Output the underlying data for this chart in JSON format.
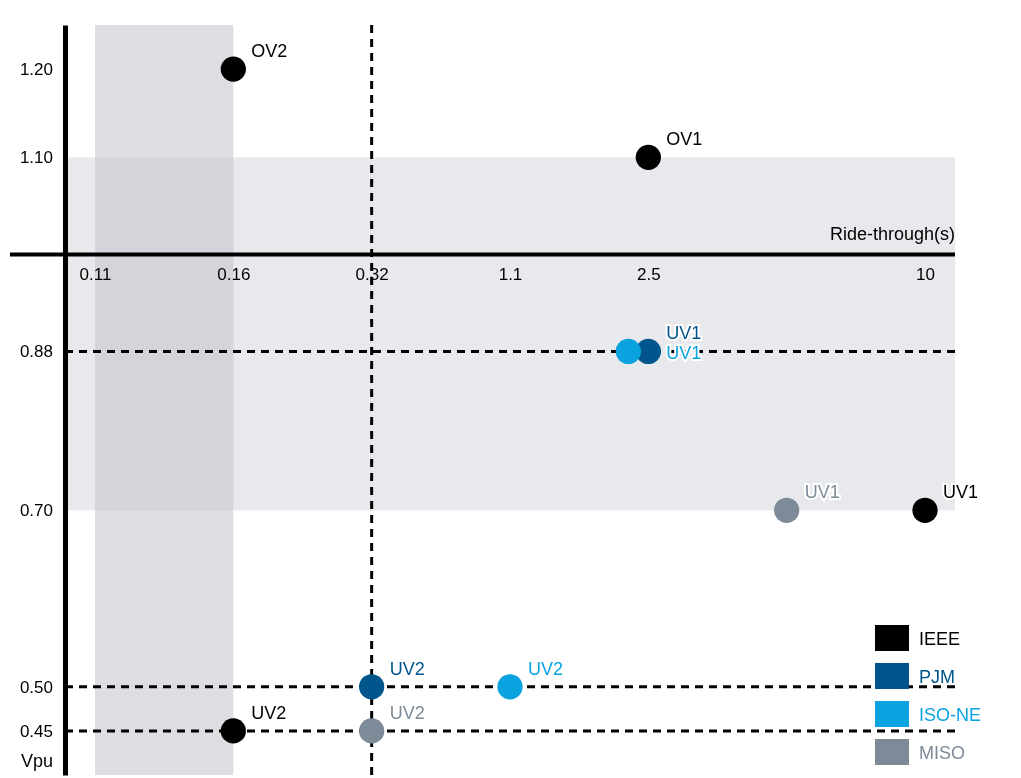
{
  "chart_data": {
    "type": "scatter",
    "xlabel": "Ride-through(s)",
    "ylabel": "Vpu",
    "categories": [
      "0.11",
      "0.16",
      "0.32",
      "1.1",
      "2.5",
      null,
      "10"
    ],
    "ylim": [
      0.4,
      1.25
    ],
    "yticks": [
      0.45,
      {
        "value": 0.5,
        "label": "0.50"
      },
      {
        "value": 0.7,
        "label": "0.70"
      },
      0.88,
      {
        "value": 1.1,
        "label": "1.10"
      },
      {
        "value": 1.2,
        "label": "1.20"
      }
    ],
    "series": [
      {
        "name": "IEEE",
        "color": "#000000",
        "values": [
          null,
          1.2,
          null,
          null,
          1.1,
          null,
          null
        ],
        "value_labels": [
          null,
          "OV2",
          null,
          null,
          "OV1",
          null,
          null
        ]
      },
      {
        "color": "#000000",
        "values": [
          null,
          0.45,
          null,
          null,
          null,
          null,
          0.7
        ],
        "value_labels": [
          null,
          "UV2",
          null,
          null,
          null,
          null,
          "UV1"
        ]
      },
      {
        "name": "PJM",
        "color": "#00558c",
        "values": [
          null,
          null,
          0.5,
          null,
          0.88,
          null,
          null
        ],
        "value_labels": [
          null,
          null,
          "UV2",
          null,
          "UV1",
          null,
          null
        ]
      },
      {
        "name": "ISO-NE",
        "color": "#0aa3e0",
        "values": [
          null,
          null,
          null,
          0.5,
          0.88,
          null,
          null
        ],
        "value_labels": [
          null,
          null,
          null,
          "UV2",
          "UV1",
          null,
          null
        ]
      },
      {
        "name": "MISO",
        "color": "#7d8b99",
        "values": [
          null,
          null,
          0.45,
          null,
          null,
          0.7,
          null
        ],
        "value_labels": [
          null,
          null,
          "UV2",
          null,
          null,
          "UV1",
          null
        ]
      }
    ],
    "bands": [
      {
        "axis": "y",
        "from": 0.7,
        "to": 1.0,
        "color": "#d9dbe0"
      },
      {
        "axis": "y",
        "from": 1.0,
        "to": 1.1,
        "color": "#d9dbe0"
      },
      {
        "axis": "x",
        "from": "0.11",
        "to": "0.16",
        "color": "#c4c8cf"
      }
    ],
    "ref_lines": [
      {
        "axis": "y",
        "value": 0.88,
        "line_style": "dashed"
      },
      {
        "axis": "y",
        "value": 0.5,
        "line_style": "dashed"
      },
      {
        "axis": "y",
        "value": 0.45,
        "line_style": "dashed"
      },
      {
        "axis": "x",
        "value": "0.32",
        "line_style": "dashed"
      }
    ],
    "marker": "circle",
    "legend": "bottom right"
  }
}
